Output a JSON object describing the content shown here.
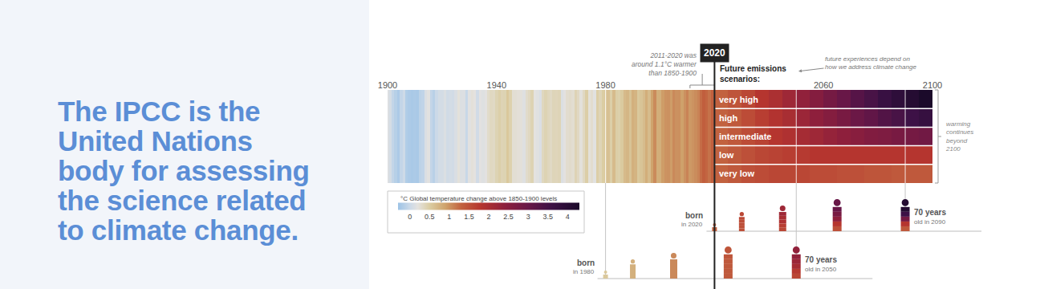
{
  "intro": {
    "lines": [
      "The IPCC is the",
      "United Nations",
      "body for assessing",
      "the science related",
      "to climate change."
    ]
  },
  "chart_data": {
    "type": "heatmap",
    "xlim": [
      1900,
      2100
    ],
    "xticks": [
      1900,
      1940,
      1980,
      2060,
      2100
    ],
    "tick_labels": "x",
    "present": {
      "year": 2020,
      "label": "2020"
    },
    "observed": {
      "x": [
        1900,
        1901,
        1902,
        1903,
        1904,
        1905,
        1906,
        1907,
        1908,
        1909,
        1910,
        1911,
        1912,
        1913,
        1914,
        1915,
        1916,
        1917,
        1918,
        1919,
        1920,
        1921,
        1922,
        1923,
        1924,
        1925,
        1926,
        1927,
        1928,
        1929,
        1930,
        1931,
        1932,
        1933,
        1934,
        1935,
        1936,
        1937,
        1938,
        1939,
        1940,
        1941,
        1942,
        1943,
        1944,
        1945,
        1946,
        1947,
        1948,
        1949,
        1950,
        1951,
        1952,
        1953,
        1954,
        1955,
        1956,
        1957,
        1958,
        1959,
        1960,
        1961,
        1962,
        1963,
        1964,
        1965,
        1966,
        1967,
        1968,
        1969,
        1970,
        1971,
        1972,
        1973,
        1974,
        1975,
        1976,
        1977,
        1978,
        1979,
        1980,
        1981,
        1982,
        1983,
        1984,
        1985,
        1986,
        1987,
        1988,
        1989,
        1990,
        1991,
        1992,
        1993,
        1994,
        1995,
        1996,
        1997,
        1998,
        1999,
        2000,
        2001,
        2002,
        2003,
        2004,
        2005,
        2006,
        2007,
        2008,
        2009,
        2010,
        2011,
        2012,
        2013,
        2014,
        2015,
        2016,
        2017,
        2018,
        2019,
        2020
      ],
      "values": [
        0.14,
        0.08,
        -0.05,
        -0.13,
        -0.2,
        -0.05,
        0.02,
        -0.17,
        -0.2,
        -0.22,
        -0.2,
        -0.22,
        -0.1,
        -0.07,
        0.12,
        0.18,
        -0.05,
        -0.12,
        0,
        0.06,
        0.06,
        0.13,
        0.04,
        0.06,
        0.05,
        0.12,
        0.22,
        0.13,
        0.14,
        -0.02,
        0.18,
        0.23,
        0.2,
        0.05,
        0.19,
        0.15,
        0.19,
        0.3,
        0.35,
        0.33,
        0.42,
        0.47,
        0.41,
        0.42,
        0.55,
        0.45,
        0.26,
        0.26,
        0.24,
        0.23,
        0.15,
        0.3,
        0.35,
        0.42,
        0.2,
        0.17,
        0.12,
        0.36,
        0.42,
        0.37,
        0.33,
        0.39,
        0.38,
        0.4,
        0.13,
        0.19,
        0.28,
        0.3,
        0.27,
        0.41,
        0.34,
        0.22,
        0.34,
        0.48,
        0.23,
        0.28,
        0.18,
        0.48,
        0.4,
        0.5,
        0.55,
        0.62,
        0.47,
        0.67,
        0.48,
        0.46,
        0.53,
        0.68,
        0.72,
        0.6,
        0.78,
        0.74,
        0.55,
        0.59,
        0.66,
        0.8,
        0.67,
        0.89,
        1.05,
        0.8,
        0.8,
        0.94,
        1,
        1.01,
        0.94,
        1.06,
        1.01,
        1.02,
        0.91,
        1.01,
        1.1,
        0.96,
        1,
        1.04,
        1.1,
        1.24,
        1.35,
        1.28,
        1.2,
        1.32,
        1.32
      ]
    },
    "scenarios_title": [
      "Future emissions",
      "scenarios:"
    ],
    "scenarios": {
      "bins": [
        2020,
        2025,
        2030,
        2035,
        2040,
        2045,
        2050,
        2055,
        2060,
        2065,
        2070,
        2075,
        2080,
        2085,
        2090,
        2095,
        2100
      ],
      "series": [
        {
          "name": "very high",
          "values": [
            1.3,
            1.45,
            1.6,
            1.8,
            1.95,
            2.15,
            2.35,
            2.55,
            2.8,
            3,
            3.25,
            3.45,
            3.7,
            3.9,
            4.1,
            4.3
          ]
        },
        {
          "name": "high",
          "values": [
            1.3,
            1.4,
            1.55,
            1.7,
            1.85,
            2,
            2.2,
            2.4,
            2.55,
            2.75,
            2.95,
            3.1,
            3.3,
            3.45,
            3.6,
            3.75
          ]
        },
        {
          "name": "intermediate",
          "values": [
            1.3,
            1.4,
            1.55,
            1.65,
            1.8,
            1.9,
            2.05,
            2.15,
            2.3,
            2.4,
            2.5,
            2.6,
            2.65,
            2.75,
            2.8,
            2.85
          ]
        },
        {
          "name": "low",
          "values": [
            1.3,
            1.4,
            1.5,
            1.6,
            1.65,
            1.7,
            1.75,
            1.8,
            1.8,
            1.8,
            1.8,
            1.8,
            1.8,
            1.8,
            1.8,
            1.8
          ]
        },
        {
          "name": "very low",
          "values": [
            1.3,
            1.4,
            1.5,
            1.55,
            1.6,
            1.6,
            1.6,
            1.55,
            1.55,
            1.5,
            1.5,
            1.45,
            1.45,
            1.4,
            1.4,
            1.4
          ]
        }
      ]
    },
    "colorbar": {
      "title": "°C Global temperature change above 1850-1900 levels",
      "range": [
        -0.3,
        4.3
      ],
      "ticks": [
        0,
        0.5,
        1,
        1.5,
        2,
        2.5,
        3,
        3.5,
        4
      ]
    },
    "annotations": [
      {
        "text": [
          "2011-2020 was",
          "around 1.1°C warmer",
          "than 1850-1900"
        ],
        "span": [
          2011,
          2020
        ]
      },
      {
        "text": [
          "future experiences depend on",
          "how we address climate change"
        ]
      },
      {
        "text": [
          "warming",
          "continues",
          "beyond",
          "2100"
        ]
      }
    ],
    "generations": [
      {
        "born": 2020,
        "born_label": [
          "born",
          "in 2020"
        ],
        "end": 2090,
        "end_label": [
          "70 years",
          "old in 2090"
        ],
        "figure_years": [
          2020,
          2030,
          2045,
          2065,
          2090
        ]
      },
      {
        "born": 1980,
        "born_label": [
          "born",
          "in 1980"
        ],
        "end": 2050,
        "end_label": [
          "70 years",
          "old in 2050"
        ],
        "figure_years": [
          1980,
          1990,
          2005,
          2025,
          2050
        ]
      }
    ]
  }
}
